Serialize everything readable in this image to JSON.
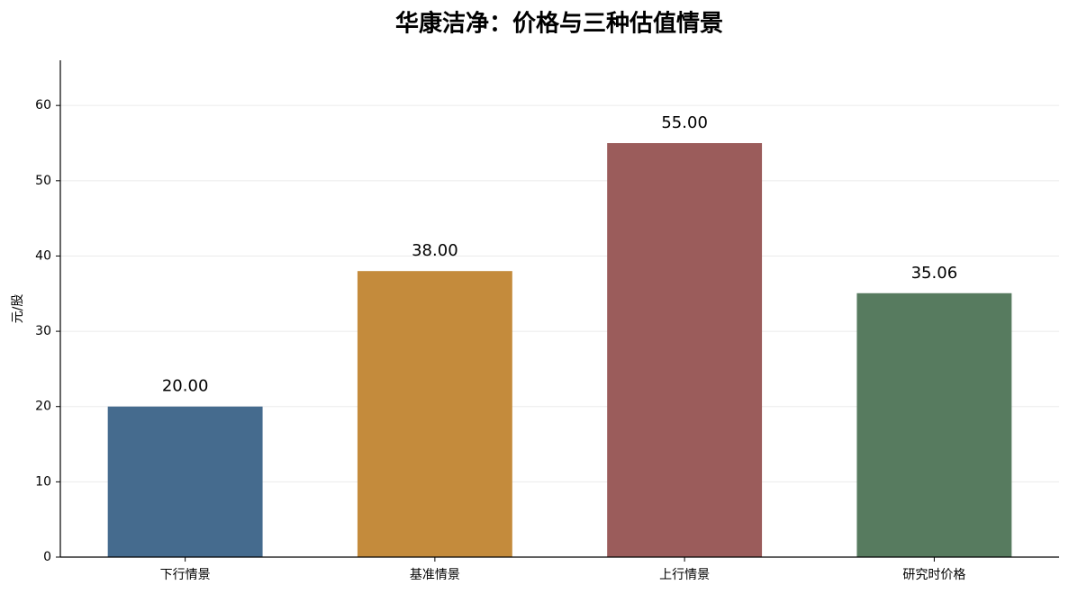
{
  "chart_data": {
    "type": "bar",
    "title": "华康洁净：价格与三种估值情景",
    "y_label": "元/股",
    "categories": [
      "下行情景",
      "基准情景",
      "上行情景",
      "研究时价格"
    ],
    "values": [
      20,
      38,
      55,
      35.06
    ],
    "value_labels": [
      "20.00",
      "38.00",
      "55.00",
      "35.06"
    ],
    "colors": [
      "#456b8e",
      "#c48b3c",
      "#9b5c5b",
      "#577b5f"
    ],
    "ylim": [
      0,
      66
    ],
    "yticks": [
      0,
      10,
      20,
      30,
      40,
      50,
      60
    ],
    "grid": true
  }
}
